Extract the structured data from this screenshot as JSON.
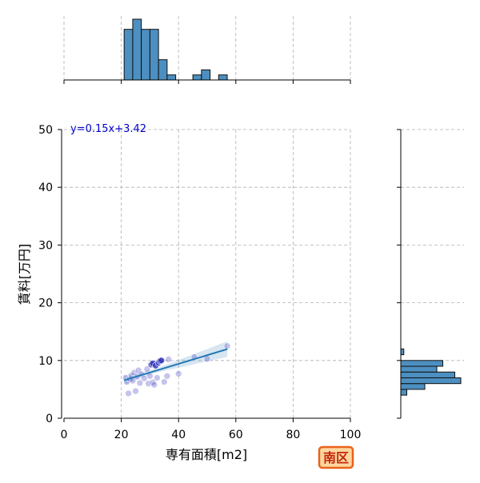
{
  "chart_data": {
    "type": "scatter",
    "xlabel": "専有面積[m2]",
    "ylabel": "賃料[万円]",
    "xlim": [
      0,
      100
    ],
    "ylim": [
      0,
      50
    ],
    "x_ticks": [
      "0",
      "20",
      "40",
      "60",
      "80",
      "100"
    ],
    "y_ticks": [
      "0",
      "10",
      "20",
      "30",
      "40",
      "50"
    ],
    "grid": true,
    "annotation": "y=0.15x+3.42",
    "badge": "南区",
    "colors": {
      "points": "#3a3ac0",
      "regression": "#1f77b4",
      "histogram": "#4c8fc0",
      "equation": "#0000cc",
      "badge_border": "#e8631a",
      "badge_fill": "#ffd6a0"
    },
    "regression": {
      "slope": 0.15,
      "intercept": 3.42,
      "x_range": [
        21,
        57
      ]
    },
    "points": [
      {
        "x": 21.5,
        "y": 7.0
      },
      {
        "x": 22.0,
        "y": 6.3
      },
      {
        "x": 22.5,
        "y": 4.3
      },
      {
        "x": 23.0,
        "y": 6.8
      },
      {
        "x": 23.5,
        "y": 7.4
      },
      {
        "x": 24.0,
        "y": 6.5
      },
      {
        "x": 24.5,
        "y": 7.9
      },
      {
        "x": 25.0,
        "y": 4.7
      },
      {
        "x": 25.5,
        "y": 7.2
      },
      {
        "x": 26.0,
        "y": 8.3
      },
      {
        "x": 26.5,
        "y": 6.1
      },
      {
        "x": 27.0,
        "y": 7.6
      },
      {
        "x": 28.0,
        "y": 6.9
      },
      {
        "x": 29.0,
        "y": 8.5
      },
      {
        "x": 29.5,
        "y": 6.0
      },
      {
        "x": 30.0,
        "y": 7.3
      },
      {
        "x": 30.5,
        "y": 9.3
      },
      {
        "x": 31.0,
        "y": 9.5
      },
      {
        "x": 31.0,
        "y": 6.2
      },
      {
        "x": 31.5,
        "y": 5.8
      },
      {
        "x": 32.0,
        "y": 9.1
      },
      {
        "x": 32.5,
        "y": 7.0
      },
      {
        "x": 33.0,
        "y": 9.6
      },
      {
        "x": 33.5,
        "y": 9.9
      },
      {
        "x": 34.0,
        "y": 10.0
      },
      {
        "x": 35.0,
        "y": 6.3
      },
      {
        "x": 36.0,
        "y": 7.3
      },
      {
        "x": 36.5,
        "y": 10.2
      },
      {
        "x": 40.0,
        "y": 7.7
      },
      {
        "x": 45.5,
        "y": 10.6
      },
      {
        "x": 50.0,
        "y": 10.3
      },
      {
        "x": 57.0,
        "y": 12.5
      }
    ],
    "x_histogram": {
      "bin_edges": [
        21,
        24,
        27,
        30,
        33,
        36,
        39,
        42,
        45,
        48,
        51,
        54,
        57
      ],
      "counts": [
        5,
        6,
        5,
        5,
        2,
        0.5,
        0,
        0,
        0.5,
        1,
        0,
        0.5
      ]
    },
    "y_histogram": {
      "bin_edges": [
        4,
        5,
        6,
        7,
        8,
        9,
        10,
        11,
        12
      ],
      "counts": [
        1,
        4,
        10,
        9,
        6,
        7,
        0,
        0.5
      ]
    }
  }
}
